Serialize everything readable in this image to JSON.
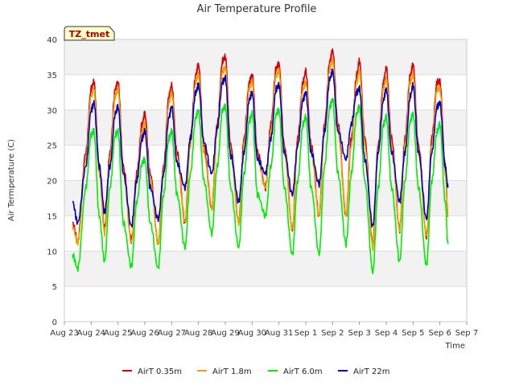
{
  "chart_data": {
    "type": "line",
    "title": "Air Temperature Profile",
    "xlabel": "Time",
    "ylabel": "Air Termperature (C)",
    "badge": "TZ_tmet",
    "xlim": [
      0,
      15
    ],
    "ylim": [
      0,
      40
    ],
    "x_ticks": [
      {
        "x": 0,
        "label": "Aug 23"
      },
      {
        "x": 1,
        "label": "Aug 24"
      },
      {
        "x": 2,
        "label": "Aug 25"
      },
      {
        "x": 3,
        "label": "Aug 26"
      },
      {
        "x": 4,
        "label": "Aug 27"
      },
      {
        "x": 5,
        "label": "Aug 28"
      },
      {
        "x": 6,
        "label": "Aug 29"
      },
      {
        "x": 7,
        "label": "Aug 30"
      },
      {
        "x": 8,
        "label": "Aug 31"
      },
      {
        "x": 9,
        "label": "Sep 1"
      },
      {
        "x": 10,
        "label": "Sep 2"
      },
      {
        "x": 11,
        "label": "Sep 3"
      },
      {
        "x": 12,
        "label": "Sep 4"
      },
      {
        "x": 13,
        "label": "Sep 5"
      },
      {
        "x": 14,
        "label": "Sep 6"
      },
      {
        "x": 15,
        "label": "Sep 7"
      }
    ],
    "y_ticks": [
      0,
      5,
      10,
      15,
      20,
      25,
      30,
      35,
      40
    ],
    "grid": true,
    "legend_position": "bottom",
    "series": [
      {
        "name": "AirT 0.35m",
        "color": "#dd0000",
        "points": [
          [
            0.3,
            14
          ],
          [
            0.5,
            11.5
          ],
          [
            0.8,
            24
          ],
          [
            1.0,
            33
          ],
          [
            1.1,
            34
          ],
          [
            1.3,
            22
          ],
          [
            1.5,
            13
          ],
          [
            1.7,
            24
          ],
          [
            1.9,
            33
          ],
          [
            2.0,
            34
          ],
          [
            2.2,
            22
          ],
          [
            2.5,
            11.5
          ],
          [
            2.7,
            21
          ],
          [
            2.9,
            28
          ],
          [
            3.0,
            29.5
          ],
          [
            3.2,
            21
          ],
          [
            3.5,
            11
          ],
          [
            3.7,
            22
          ],
          [
            3.9,
            32
          ],
          [
            4.0,
            33.5
          ],
          [
            4.2,
            24
          ],
          [
            4.5,
            14
          ],
          [
            4.7,
            26
          ],
          [
            4.9,
            35
          ],
          [
            5.0,
            36.5
          ],
          [
            5.2,
            25
          ],
          [
            5.5,
            16
          ],
          [
            5.7,
            28
          ],
          [
            5.9,
            37
          ],
          [
            6.0,
            37.5
          ],
          [
            6.2,
            25
          ],
          [
            6.5,
            14
          ],
          [
            6.7,
            26
          ],
          [
            6.9,
            34
          ],
          [
            7.0,
            35
          ],
          [
            7.2,
            24
          ],
          [
            7.5,
            19
          ],
          [
            7.7,
            28
          ],
          [
            7.9,
            36
          ],
          [
            8.0,
            36.5
          ],
          [
            8.2,
            25
          ],
          [
            8.5,
            13
          ],
          [
            8.7,
            26
          ],
          [
            8.9,
            34
          ],
          [
            9.0,
            35.5
          ],
          [
            9.2,
            25
          ],
          [
            9.5,
            15
          ],
          [
            9.7,
            28
          ],
          [
            9.9,
            37
          ],
          [
            10.0,
            38.5
          ],
          [
            10.2,
            28
          ],
          [
            10.5,
            15
          ],
          [
            10.7,
            26
          ],
          [
            10.9,
            35
          ],
          [
            11.0,
            37
          ],
          [
            11.2,
            26
          ],
          [
            11.5,
            11
          ],
          [
            11.7,
            25
          ],
          [
            11.9,
            34
          ],
          [
            12.0,
            36
          ],
          [
            12.2,
            26
          ],
          [
            12.5,
            13
          ],
          [
            12.7,
            26
          ],
          [
            12.9,
            35
          ],
          [
            13.0,
            36.5
          ],
          [
            13.2,
            25
          ],
          [
            13.5,
            12
          ],
          [
            13.7,
            26
          ],
          [
            13.9,
            34
          ],
          [
            14.0,
            34
          ],
          [
            14.2,
            22
          ],
          [
            14.3,
            15
          ]
        ]
      },
      {
        "name": "AirT 1.8m",
        "color": "#f0a000",
        "points": [
          [
            0.3,
            13.5
          ],
          [
            0.5,
            11.2
          ],
          [
            0.8,
            23
          ],
          [
            1.0,
            32
          ],
          [
            1.1,
            33
          ],
          [
            1.3,
            21
          ],
          [
            1.5,
            12.5
          ],
          [
            1.7,
            23
          ],
          [
            1.9,
            32
          ],
          [
            2.0,
            33
          ],
          [
            2.2,
            21
          ],
          [
            2.5,
            11.2
          ],
          [
            2.7,
            20
          ],
          [
            2.9,
            27
          ],
          [
            3.0,
            28
          ],
          [
            3.2,
            20
          ],
          [
            3.5,
            11
          ],
          [
            3.7,
            21
          ],
          [
            3.9,
            31
          ],
          [
            4.0,
            32.5
          ],
          [
            4.2,
            23
          ],
          [
            4.5,
            14
          ],
          [
            4.7,
            25
          ],
          [
            4.9,
            34
          ],
          [
            5.0,
            35
          ],
          [
            5.2,
            24
          ],
          [
            5.5,
            16
          ],
          [
            5.7,
            27
          ],
          [
            5.9,
            35.5
          ],
          [
            6.0,
            36
          ],
          [
            6.2,
            24
          ],
          [
            6.5,
            14
          ],
          [
            6.7,
            25
          ],
          [
            6.9,
            33
          ],
          [
            7.0,
            34
          ],
          [
            7.2,
            23
          ],
          [
            7.5,
            19
          ],
          [
            7.7,
            27
          ],
          [
            7.9,
            35
          ],
          [
            8.0,
            35.5
          ],
          [
            8.2,
            24
          ],
          [
            8.5,
            13
          ],
          [
            8.7,
            25
          ],
          [
            8.9,
            33
          ],
          [
            9.0,
            34
          ],
          [
            9.2,
            24
          ],
          [
            9.5,
            15
          ],
          [
            9.7,
            27
          ],
          [
            9.9,
            36
          ],
          [
            10.0,
            37
          ],
          [
            10.2,
            27
          ],
          [
            10.5,
            15
          ],
          [
            10.7,
            25
          ],
          [
            10.9,
            34
          ],
          [
            11.0,
            35.5
          ],
          [
            11.2,
            25
          ],
          [
            11.5,
            10.5
          ],
          [
            11.7,
            24
          ],
          [
            11.9,
            33
          ],
          [
            12.0,
            34.5
          ],
          [
            12.2,
            25
          ],
          [
            12.5,
            13
          ],
          [
            12.7,
            25
          ],
          [
            12.9,
            34
          ],
          [
            13.0,
            35
          ],
          [
            13.2,
            24
          ],
          [
            13.5,
            12
          ],
          [
            13.7,
            25
          ],
          [
            13.9,
            33
          ],
          [
            14.0,
            33
          ],
          [
            14.2,
            21
          ],
          [
            14.3,
            15
          ]
        ]
      },
      {
        "name": "AirT 6.0m",
        "color": "#00ee00",
        "points": [
          [
            0.3,
            9.5
          ],
          [
            0.5,
            7.5
          ],
          [
            0.8,
            19
          ],
          [
            1.0,
            26.5
          ],
          [
            1.1,
            27
          ],
          [
            1.3,
            15
          ],
          [
            1.5,
            8.5
          ],
          [
            1.7,
            19
          ],
          [
            1.9,
            26.5
          ],
          [
            2.0,
            27
          ],
          [
            2.2,
            14
          ],
          [
            2.5,
            7.8
          ],
          [
            2.7,
            17
          ],
          [
            2.9,
            22.5
          ],
          [
            3.0,
            23
          ],
          [
            3.2,
            14
          ],
          [
            3.5,
            7.5
          ],
          [
            3.7,
            18
          ],
          [
            3.9,
            26
          ],
          [
            4.0,
            27
          ],
          [
            4.2,
            18
          ],
          [
            4.5,
            10.5
          ],
          [
            4.7,
            21
          ],
          [
            4.9,
            29
          ],
          [
            5.0,
            30
          ],
          [
            5.2,
            20
          ],
          [
            5.5,
            12.5
          ],
          [
            5.7,
            22
          ],
          [
            5.9,
            30
          ],
          [
            6.0,
            30.5
          ],
          [
            6.2,
            19
          ],
          [
            6.5,
            10.5
          ],
          [
            6.7,
            21
          ],
          [
            6.9,
            28.5
          ],
          [
            7.0,
            29.5
          ],
          [
            7.2,
            18
          ],
          [
            7.5,
            15
          ],
          [
            7.7,
            22
          ],
          [
            7.9,
            29.5
          ],
          [
            8.0,
            30
          ],
          [
            8.2,
            19
          ],
          [
            8.5,
            9.5
          ],
          [
            8.7,
            20
          ],
          [
            8.9,
            28
          ],
          [
            9.0,
            29
          ],
          [
            9.2,
            19
          ],
          [
            9.5,
            9.5
          ],
          [
            9.7,
            22
          ],
          [
            9.9,
            30.5
          ],
          [
            10.0,
            31.5
          ],
          [
            10.2,
            21
          ],
          [
            10.5,
            11
          ],
          [
            10.7,
            21
          ],
          [
            10.9,
            29.5
          ],
          [
            11.0,
            30.5
          ],
          [
            11.2,
            20
          ],
          [
            11.5,
            7
          ],
          [
            11.7,
            19
          ],
          [
            11.9,
            28
          ],
          [
            12.0,
            29
          ],
          [
            12.2,
            19
          ],
          [
            12.5,
            8.5
          ],
          [
            12.7,
            20
          ],
          [
            12.9,
            28.5
          ],
          [
            13.0,
            29.5
          ],
          [
            13.2,
            19
          ],
          [
            13.5,
            8
          ],
          [
            13.7,
            20
          ],
          [
            13.9,
            27
          ],
          [
            14.0,
            28
          ],
          [
            14.2,
            17
          ],
          [
            14.3,
            11
          ]
        ]
      },
      {
        "name": "AirT 22m",
        "color": "#0000cc",
        "points": [
          [
            0.3,
            17
          ],
          [
            0.5,
            14
          ],
          [
            0.8,
            22
          ],
          [
            1.0,
            30
          ],
          [
            1.1,
            31
          ],
          [
            1.3,
            22
          ],
          [
            1.5,
            15.5
          ],
          [
            1.7,
            22
          ],
          [
            1.9,
            29.5
          ],
          [
            2.0,
            30.5
          ],
          [
            2.2,
            21
          ],
          [
            2.5,
            13.5
          ],
          [
            2.7,
            20
          ],
          [
            2.9,
            26
          ],
          [
            3.0,
            27
          ],
          [
            3.2,
            19
          ],
          [
            3.5,
            14.5
          ],
          [
            3.7,
            21
          ],
          [
            3.9,
            29
          ],
          [
            4.0,
            30.5
          ],
          [
            4.2,
            22.5
          ],
          [
            4.5,
            19
          ],
          [
            4.7,
            26
          ],
          [
            4.9,
            32.5
          ],
          [
            5.0,
            33.5
          ],
          [
            5.2,
            25.5
          ],
          [
            5.5,
            21
          ],
          [
            5.7,
            27.5
          ],
          [
            5.9,
            34
          ],
          [
            6.0,
            34.5
          ],
          [
            6.2,
            23.5
          ],
          [
            6.5,
            17
          ],
          [
            6.7,
            24
          ],
          [
            6.9,
            31.5
          ],
          [
            7.0,
            32.5
          ],
          [
            7.2,
            23
          ],
          [
            7.5,
            21
          ],
          [
            7.7,
            26
          ],
          [
            7.9,
            33
          ],
          [
            8.0,
            33.5
          ],
          [
            8.2,
            24
          ],
          [
            8.5,
            18
          ],
          [
            8.7,
            25
          ],
          [
            8.9,
            31.5
          ],
          [
            9.0,
            32.5
          ],
          [
            9.2,
            24
          ],
          [
            9.5,
            19.5
          ],
          [
            9.7,
            27
          ],
          [
            9.9,
            34.5
          ],
          [
            10.0,
            35.5
          ],
          [
            10.2,
            27
          ],
          [
            10.5,
            23
          ],
          [
            10.7,
            28
          ],
          [
            10.9,
            32.5
          ],
          [
            11.0,
            33
          ],
          [
            11.2,
            23
          ],
          [
            11.5,
            13.5
          ],
          [
            11.7,
            24
          ],
          [
            11.9,
            31.5
          ],
          [
            12.0,
            33
          ],
          [
            12.2,
            24
          ],
          [
            12.5,
            17
          ],
          [
            12.7,
            24
          ],
          [
            12.9,
            32
          ],
          [
            13.0,
            33.5
          ],
          [
            13.2,
            24
          ],
          [
            13.5,
            14.5
          ],
          [
            13.7,
            24
          ],
          [
            13.9,
            30.5
          ],
          [
            14.0,
            31
          ],
          [
            14.2,
            22
          ],
          [
            14.3,
            19
          ]
        ]
      }
    ]
  }
}
